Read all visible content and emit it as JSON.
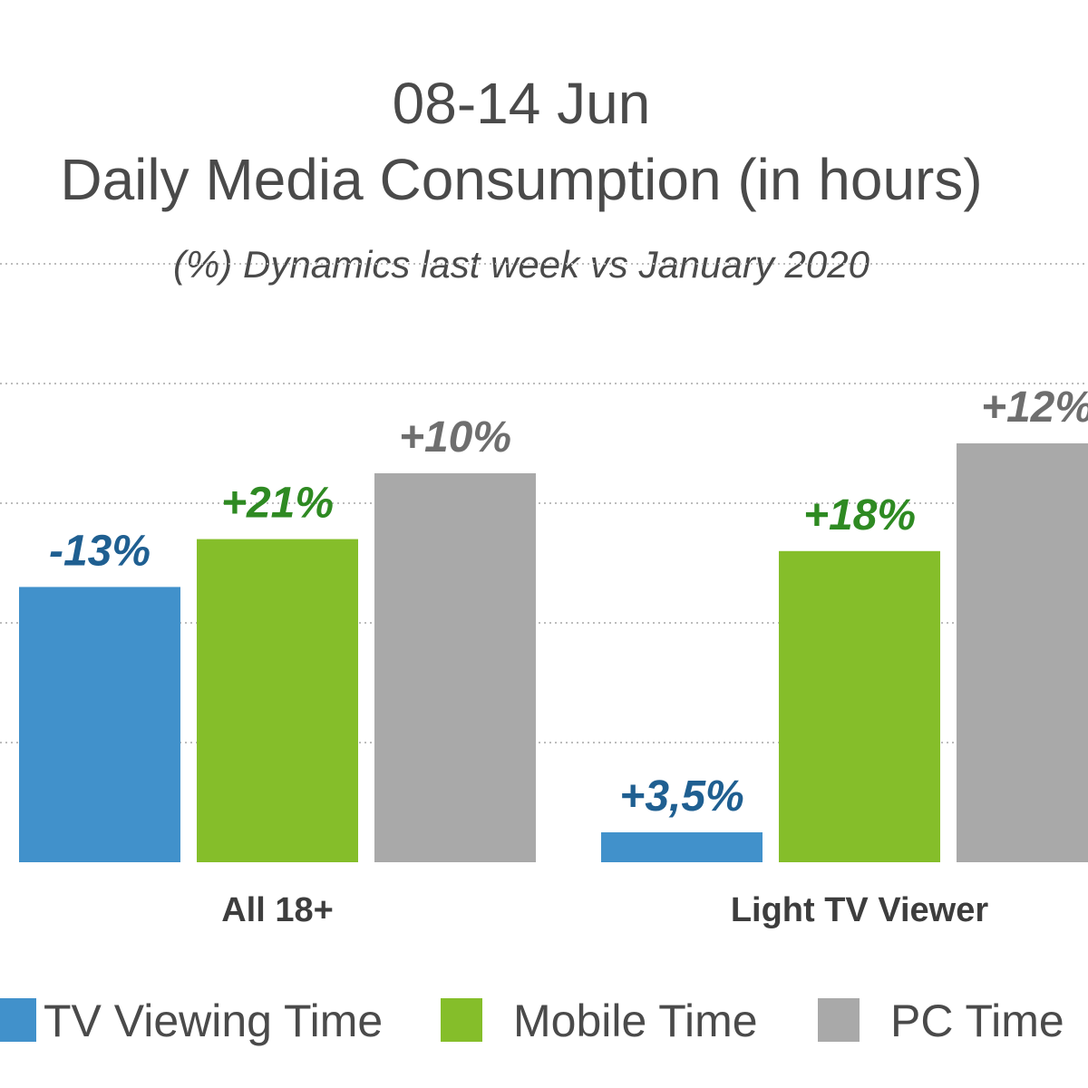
{
  "chart_data": {
    "type": "bar",
    "title": "08-14 Jun",
    "subtitle_line": "Daily Media Consumption (in hours)",
    "note": "(%) Dynamics last week  vs January 2020",
    "categories": [
      "All 18+",
      "Light TV Viewer"
    ],
    "series": [
      {
        "name": "TV Viewing Time",
        "color": "#4191cb",
        "label_color": "#1f5f91",
        "values": [
          2.3,
          0.25
        ],
        "labels": [
          "-13%",
          "+3,5%"
        ]
      },
      {
        "name": "Mobile Time",
        "color": "#85be2a",
        "label_color": "#2e8a22",
        "values": [
          2.7,
          2.6
        ],
        "labels": [
          "+21%",
          "+18%"
        ]
      },
      {
        "name": "PC Time",
        "color": "#a9a9a9",
        "label_color": "#6e6e6e",
        "values": [
          3.25,
          3.5
        ],
        "labels": [
          "+10%",
          "+12%"
        ]
      }
    ],
    "ylim": [
      0,
      5
    ],
    "grid": true,
    "legend": "bottom"
  }
}
